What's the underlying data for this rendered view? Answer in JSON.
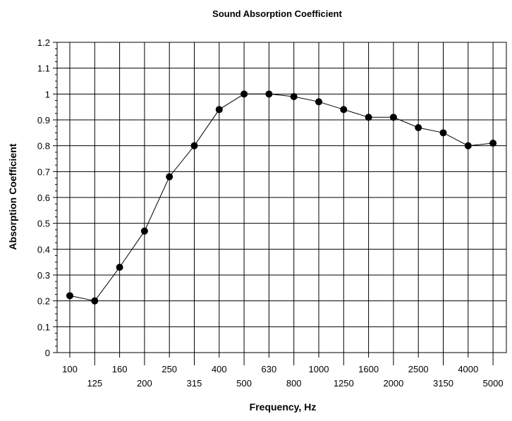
{
  "chart_data": {
    "type": "line",
    "title": "Sound Absorption Coefficient",
    "xlabel": "Frequency, Hz",
    "ylabel": "Absorption Coefficient",
    "ylim": [
      0,
      1.2
    ],
    "yticks": [
      "0",
      "0.1",
      "0.2",
      "0.3",
      "0.4",
      "0.5",
      "0.6",
      "0.7",
      "0.8",
      "0.9",
      "1",
      "1.1",
      "1.2"
    ],
    "categories": [
      "100",
      "125",
      "160",
      "200",
      "250",
      "315",
      "400",
      "500",
      "630",
      "800",
      "1000",
      "1250",
      "1600",
      "2000",
      "2500",
      "3150",
      "4000",
      "5000"
    ],
    "grid": true,
    "series": [
      {
        "values": [
          0.22,
          0.2,
          0.33,
          0.47,
          0.68,
          0.8,
          0.94,
          1.0,
          1.0,
          0.99,
          0.97,
          0.94,
          0.91,
          0.91,
          0.87,
          0.85,
          0.8,
          0.81
        ],
        "color": "#000000"
      }
    ]
  }
}
